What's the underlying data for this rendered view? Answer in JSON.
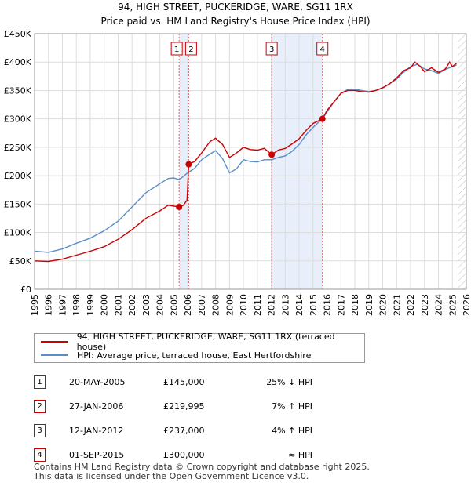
{
  "title_line1": "94, HIGH STREET, PUCKERIDGE, WARE, SG11 1RX",
  "title_line2": "Price paid vs. HM Land Registry's House Price Index (HPI)",
  "chart_data": {
    "type": "line",
    "xlim": [
      1995,
      2026
    ],
    "ylim": [
      0,
      450000
    ],
    "x_ticks": [
      "1995",
      "1996",
      "1997",
      "1998",
      "1999",
      "2000",
      "2001",
      "2002",
      "2003",
      "2004",
      "2005",
      "2006",
      "2007",
      "2008",
      "2009",
      "2010",
      "2011",
      "2012",
      "2013",
      "2014",
      "2015",
      "2016",
      "2017",
      "2018",
      "2019",
      "2020",
      "2021",
      "2022",
      "2023",
      "2024",
      "2025",
      "2026"
    ],
    "y_ticks": [
      {
        "value": 0,
        "label": "£0"
      },
      {
        "value": 50000,
        "label": "£50K"
      },
      {
        "value": 100000,
        "label": "£100K"
      },
      {
        "value": 150000,
        "label": "£150K"
      },
      {
        "value": 200000,
        "label": "£200K"
      },
      {
        "value": 250000,
        "label": "£250K"
      },
      {
        "value": 300000,
        "label": "£300K"
      },
      {
        "value": 350000,
        "label": "£350K"
      },
      {
        "value": 400000,
        "label": "£400K"
      },
      {
        "value": 450000,
        "label": "£450K"
      }
    ],
    "series": [
      {
        "name": "94, HIGH STREET, PUCKERIDGE, WARE, SG11 1RX (terraced house)",
        "color": "#cc0000",
        "points": [
          [
            1995.0,
            50000
          ],
          [
            1996.0,
            49000
          ],
          [
            1997.0,
            53000
          ],
          [
            1998.0,
            60000
          ],
          [
            1999.0,
            67000
          ],
          [
            2000.0,
            75000
          ],
          [
            2001.0,
            88000
          ],
          [
            2002.0,
            105000
          ],
          [
            2003.0,
            125000
          ],
          [
            2004.0,
            138000
          ],
          [
            2004.6,
            148000
          ],
          [
            2005.38,
            145000
          ],
          [
            2005.7,
            148000
          ],
          [
            2005.95,
            157000
          ],
          [
            2006.07,
            219995
          ],
          [
            2006.5,
            225000
          ],
          [
            2007.0,
            240000
          ],
          [
            2007.6,
            260000
          ],
          [
            2008.0,
            266000
          ],
          [
            2008.5,
            255000
          ],
          [
            2009.0,
            232000
          ],
          [
            2009.5,
            240000
          ],
          [
            2010.0,
            250000
          ],
          [
            2010.5,
            246000
          ],
          [
            2011.0,
            245000
          ],
          [
            2011.5,
            248000
          ],
          [
            2012.03,
            237000
          ],
          [
            2012.5,
            245000
          ],
          [
            2013.0,
            248000
          ],
          [
            2013.5,
            256000
          ],
          [
            2014.0,
            265000
          ],
          [
            2014.5,
            280000
          ],
          [
            2015.0,
            292000
          ],
          [
            2015.67,
            300000
          ],
          [
            2016.0,
            315000
          ],
          [
            2016.5,
            330000
          ],
          [
            2017.0,
            345000
          ],
          [
            2017.5,
            350000
          ],
          [
            2018.0,
            350000
          ],
          [
            2018.5,
            348000
          ],
          [
            2019.0,
            347000
          ],
          [
            2019.5,
            350000
          ],
          [
            2020.0,
            355000
          ],
          [
            2020.5,
            362000
          ],
          [
            2021.0,
            372000
          ],
          [
            2021.5,
            385000
          ],
          [
            2022.0,
            390000
          ],
          [
            2022.3,
            400000
          ],
          [
            2022.7,
            392000
          ],
          [
            2023.0,
            383000
          ],
          [
            2023.5,
            390000
          ],
          [
            2024.0,
            382000
          ],
          [
            2024.5,
            388000
          ],
          [
            2024.8,
            400000
          ],
          [
            2025.0,
            392000
          ],
          [
            2025.3,
            398000
          ]
        ]
      },
      {
        "name": "HPI: Average price, terraced house, East Hertfordshire",
        "color": "#5b8ec9",
        "points": [
          [
            1995.0,
            67000
          ],
          [
            1996.0,
            65000
          ],
          [
            1997.0,
            71000
          ],
          [
            1998.0,
            81000
          ],
          [
            1999.0,
            90000
          ],
          [
            2000.0,
            103000
          ],
          [
            2001.0,
            120000
          ],
          [
            2002.0,
            145000
          ],
          [
            2003.0,
            170000
          ],
          [
            2004.0,
            186000
          ],
          [
            2004.6,
            195000
          ],
          [
            2005.0,
            196000
          ],
          [
            2005.38,
            193000
          ],
          [
            2006.0,
            205000
          ],
          [
            2006.5,
            213000
          ],
          [
            2007.0,
            228000
          ],
          [
            2007.6,
            238000
          ],
          [
            2008.0,
            244000
          ],
          [
            2008.5,
            230000
          ],
          [
            2009.0,
            205000
          ],
          [
            2009.5,
            212000
          ],
          [
            2010.0,
            228000
          ],
          [
            2010.5,
            225000
          ],
          [
            2011.0,
            224000
          ],
          [
            2011.5,
            228000
          ],
          [
            2012.03,
            228000
          ],
          [
            2012.5,
            232000
          ],
          [
            2013.0,
            235000
          ],
          [
            2013.5,
            243000
          ],
          [
            2014.0,
            255000
          ],
          [
            2014.5,
            272000
          ],
          [
            2015.0,
            285000
          ],
          [
            2015.67,
            300000
          ],
          [
            2016.0,
            312000
          ],
          [
            2016.5,
            330000
          ],
          [
            2017.0,
            345000
          ],
          [
            2017.5,
            352000
          ],
          [
            2018.0,
            352000
          ],
          [
            2018.5,
            350000
          ],
          [
            2019.0,
            348000
          ],
          [
            2019.5,
            350000
          ],
          [
            2020.0,
            354000
          ],
          [
            2020.5,
            362000
          ],
          [
            2021.0,
            370000
          ],
          [
            2021.5,
            382000
          ],
          [
            2022.0,
            392000
          ],
          [
            2022.5,
            396000
          ],
          [
            2023.0,
            388000
          ],
          [
            2023.5,
            385000
          ],
          [
            2024.0,
            380000
          ],
          [
            2024.5,
            387000
          ],
          [
            2025.0,
            392000
          ],
          [
            2025.3,
            395000
          ]
        ]
      }
    ],
    "sales": [
      {
        "num": "1",
        "x": 2005.38,
        "value": 145000
      },
      {
        "num": "2",
        "x": 2006.07,
        "value": 219995
      },
      {
        "num": "3",
        "x": 2012.03,
        "value": 237000
      },
      {
        "num": "4",
        "x": 2015.67,
        "value": 300000
      }
    ],
    "shaded_spans": [
      [
        2005.38,
        2006.07
      ],
      [
        2012.03,
        2015.67
      ]
    ],
    "hatched_from": 2025.4
  },
  "legend": {
    "property_label": "94, HIGH STREET, PUCKERIDGE, WARE, SG11 1RX (terraced house)",
    "hpi_label": "HPI: Average price, terraced house, East Hertfordshire",
    "property_color": "#cc0000",
    "hpi_color": "#5b8ec9"
  },
  "transactions": [
    {
      "num": "1",
      "date": "20-MAY-2005",
      "price": "£145,000",
      "hpi": "25% ↓ HPI"
    },
    {
      "num": "2",
      "date": "27-JAN-2006",
      "price": "£219,995",
      "hpi": "7% ↑ HPI"
    },
    {
      "num": "3",
      "date": "12-JAN-2012",
      "price": "£237,000",
      "hpi": "4% ↑ HPI"
    },
    {
      "num": "4",
      "date": "01-SEP-2015",
      "price": "£300,000",
      "hpi": "≈ HPI"
    }
  ],
  "footer_line1": "Contains HM Land Registry data © Crown copyright and database right 2025.",
  "footer_line2": "This data is licensed under the Open Government Licence v3.0."
}
